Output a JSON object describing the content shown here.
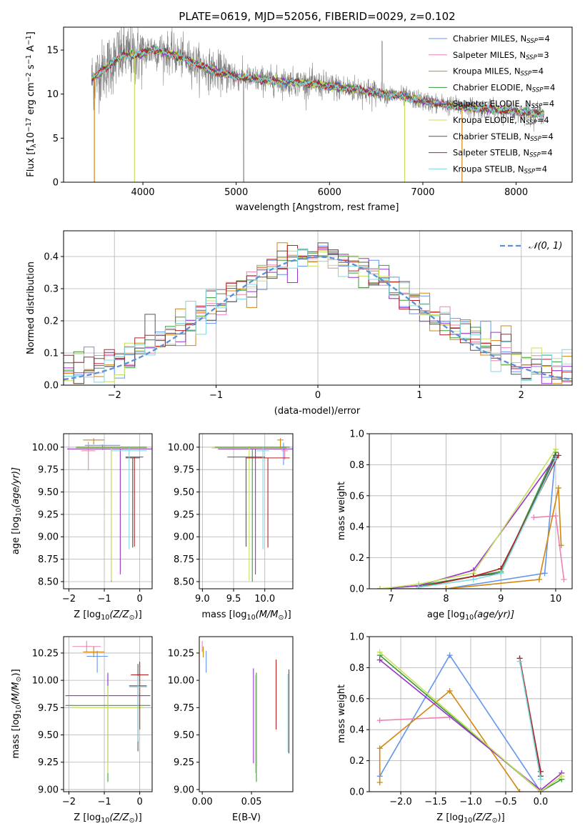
{
  "chart_data": [
    {
      "id": "spectrum",
      "type": "line",
      "title": "PLATE=0619, MJD=52056, FIBERID=0029, z=0.102",
      "xlabel": "wavelength [Angstrom, rest frame]",
      "ylabel_parts": [
        "Flux [f",
        "λ",
        "10",
        "−17",
        " erg cm",
        "−2",
        " s",
        "−1",
        " A",
        "−1",
        "]"
      ],
      "xlim": [
        3150,
        8600
      ],
      "ylim": [
        0,
        17.6
      ],
      "xticks": [
        4000,
        5000,
        6000,
        7000,
        8000
      ],
      "yticks": [
        0,
        5,
        10,
        15
      ],
      "grid": false,
      "legend_position": "upper right",
      "legend": [
        {
          "name": "Chabrier MILES, N",
          "sub": "SSP",
          "tail": "=4",
          "color": "#6495ed"
        },
        {
          "name": "Salpeter MILES, N",
          "sub": "SSP",
          "tail": "=3",
          "color": "#ee82b4"
        },
        {
          "name": "Kroupa MILES, N",
          "sub": "SSP",
          "tail": "=4",
          "color": "#d2860e"
        },
        {
          "name": "Chabrier ELODIE, N",
          "sub": "SSP",
          "tail": "=4",
          "color": "#3a9a3a"
        },
        {
          "name": "Salpeter ELODIE, N",
          "sub": "SSP",
          "tail": "=4",
          "color": "#9932cc"
        },
        {
          "name": "Kroupa ELODIE, N",
          "sub": "SSP",
          "tail": "=4",
          "color": "#c5e05a"
        },
        {
          "name": "Chabrier STELIB, N",
          "sub": "SSP",
          "tail": "=4",
          "color": "#555555"
        },
        {
          "name": "Salpeter STELIB, N",
          "sub": "SSP",
          "tail": "=4",
          "color": "#b22222"
        },
        {
          "name": "Kroupa STELIB, N",
          "sub": "SSP",
          "tail": "=4",
          "color": "#7fd8e0"
        }
      ],
      "data_color": "#808080",
      "continuum": [
        [
          3450,
          11.6
        ],
        [
          3600,
          13.0
        ],
        [
          3800,
          14.5
        ],
        [
          3950,
          14.4
        ],
        [
          4100,
          15.1
        ],
        [
          4300,
          14.6
        ],
        [
          4500,
          13.8
        ],
        [
          4700,
          12.8
        ],
        [
          4900,
          12.3
        ],
        [
          5100,
          11.8
        ],
        [
          5400,
          11.5
        ],
        [
          5700,
          11.3
        ],
        [
          6000,
          10.9
        ],
        [
          6300,
          10.5
        ],
        [
          6600,
          10.0
        ],
        [
          6800,
          9.7
        ],
        [
          7000,
          9.2
        ],
        [
          7300,
          8.7
        ],
        [
          7600,
          8.4
        ],
        [
          7900,
          8.1
        ],
        [
          8200,
          7.8
        ],
        [
          8300,
          7.8
        ]
      ]
    },
    {
      "id": "residuals",
      "type": "step",
      "xlabel": "(data-model)/error",
      "ylabel": "Normed distribution",
      "xlim": [
        -2.5,
        2.5
      ],
      "ylim": [
        0,
        0.48
      ],
      "xticks": [
        -2,
        -1,
        0,
        1,
        2
      ],
      "yticks": [
        0.0,
        0.1,
        0.2,
        0.3,
        0.4
      ],
      "grid": true,
      "legend": "𝒩(0, 1)",
      "legend_position": "upper right",
      "reference_color": "#5b8fd9",
      "bin_width": 0.1
    },
    {
      "id": "age-vs-Z",
      "type": "scatter",
      "xlabel_main": "Z [log",
      "xlabel_sub": "10",
      "xlabel_tail": "(Z/Z",
      "xlabel_end": ")]",
      "ylabel_main": "age  [log",
      "ylabel_sub": "10",
      "ylabel_tail": "(age/yr)]",
      "xlim": [
        -2.15,
        0.35
      ],
      "ylim": [
        8.42,
        10.15
      ],
      "xticks": [
        -2,
        -1,
        0
      ],
      "yticks": [
        8.5,
        8.75,
        9.0,
        9.25,
        9.5,
        9.75,
        10.0
      ],
      "grid": true,
      "points": [
        {
          "x": -1.05,
          "y": 10.02,
          "xerr": 0.5,
          "yerr_lo": 0.05,
          "yerr_hi": 0.01,
          "color": "#6495ed"
        },
        {
          "x": -1.45,
          "y": 9.96,
          "xerr": 0.2,
          "yerr_lo": 0.22,
          "yerr_hi": 0.1,
          "color": "#ee82b4"
        },
        {
          "x": -1.3,
          "y": 10.08,
          "xerr": 0.3,
          "yerr_lo": 0.05,
          "yerr_hi": 0.02,
          "color": "#d2860e"
        },
        {
          "x": -0.8,
          "y": 10.0,
          "xerr": 1.0,
          "yerr_lo": 1.5,
          "yerr_hi": 0.0,
          "color": "#3a9a3a"
        },
        {
          "x": -0.55,
          "y": 9.98,
          "xerr": 1.5,
          "yerr_lo": 1.4,
          "yerr_hi": 0.0,
          "color": "#9932cc"
        },
        {
          "x": -0.8,
          "y": 9.99,
          "xerr": 1.0,
          "yerr_lo": 1.48,
          "yerr_hi": 0.0,
          "color": "#c5e05a"
        },
        {
          "x": -0.2,
          "y": 9.88,
          "xerr": 0.2,
          "yerr_lo": 1.0,
          "yerr_hi": 0.0,
          "color": "#555555"
        },
        {
          "x": -0.15,
          "y": 9.89,
          "xerr": 0.25,
          "yerr_lo": 1.0,
          "yerr_hi": 0.0,
          "color": "#b22222"
        },
        {
          "x": -0.3,
          "y": 9.96,
          "xerr": 0.5,
          "yerr_lo": 1.1,
          "yerr_hi": 0.04,
          "color": "#7fd8e0"
        }
      ]
    },
    {
      "id": "age-vs-mass",
      "type": "scatter",
      "xlabel_main": "mass [log",
      "xlabel_sub": "10",
      "xlabel_tail": "(M/M",
      "xlabel_end": ")]",
      "xlim": [
        8.95,
        10.45
      ],
      "ylim": [
        8.42,
        10.15
      ],
      "xticks": [
        9.0,
        9.5,
        10.0
      ],
      "yticks": [
        8.5,
        8.75,
        9.0,
        9.25,
        9.5,
        9.75,
        10.0
      ],
      "grid": true,
      "points": [
        {
          "x": 10.3,
          "y": 10.0,
          "xerr": 0.05,
          "yerr_lo": 0.2,
          "yerr_hi": 0.05,
          "color": "#6495ed"
        },
        {
          "x": 10.32,
          "y": 9.96,
          "xerr": 0.05,
          "yerr_lo": 0.1,
          "yerr_hi": 0.05,
          "color": "#ee82b4"
        },
        {
          "x": 10.25,
          "y": 10.08,
          "xerr": 0.05,
          "yerr_lo": 0.1,
          "yerr_hi": 0.02,
          "color": "#d2860e"
        },
        {
          "x": 9.8,
          "y": 10.0,
          "xerr": 0.6,
          "yerr_lo": 1.5,
          "yerr_hi": 0.0,
          "color": "#3a9a3a"
        },
        {
          "x": 9.85,
          "y": 9.98,
          "xerr": 0.6,
          "yerr_lo": 1.4,
          "yerr_hi": 0.0,
          "color": "#9932cc"
        },
        {
          "x": 9.75,
          "y": 9.99,
          "xerr": 0.6,
          "yerr_lo": 1.48,
          "yerr_hi": 0.0,
          "color": "#c5e05a"
        },
        {
          "x": 9.7,
          "y": 9.89,
          "xerr": 0.3,
          "yerr_lo": 1.0,
          "yerr_hi": 0.0,
          "color": "#555555"
        },
        {
          "x": 10.05,
          "y": 9.88,
          "xerr": 0.35,
          "yerr_lo": 1.0,
          "yerr_hi": 0.0,
          "color": "#b22222"
        },
        {
          "x": 9.97,
          "y": 9.96,
          "xerr": 0.1,
          "yerr_lo": 1.1,
          "yerr_hi": 0.04,
          "color": "#7fd8e0"
        }
      ]
    },
    {
      "id": "weight-vs-age",
      "type": "line",
      "xlabel_main": "age  [log",
      "xlabel_sub": "10",
      "xlabel_tail": "(age/yr)]",
      "ylabel": "mass weight",
      "xlim": [
        6.6,
        10.3
      ],
      "ylim": [
        0,
        1.0
      ],
      "xticks": [
        7,
        8,
        9,
        10
      ],
      "yticks": [
        0.0,
        0.2,
        0.4,
        0.6,
        0.8,
        1.0
      ],
      "grid": true,
      "series": [
        {
          "color": "#6495ed",
          "points": [
            [
              6.8,
              0.0
            ],
            [
              8.0,
              0.0
            ],
            [
              9.8,
              0.1
            ],
            [
              10.0,
              0.88
            ]
          ]
        },
        {
          "color": "#ee82b4",
          "points": [
            [
              9.6,
              0.46
            ],
            [
              10.0,
              0.47
            ],
            [
              10.15,
              0.06
            ]
          ]
        },
        {
          "color": "#d2860e",
          "points": [
            [
              7.5,
              0.0
            ],
            [
              8.0,
              0.0
            ],
            [
              9.7,
              0.06
            ],
            [
              10.05,
              0.65
            ],
            [
              10.1,
              0.28
            ]
          ]
        },
        {
          "color": "#3a9a3a",
          "points": [
            [
              6.8,
              0.0
            ],
            [
              7.5,
              0.02
            ],
            [
              8.5,
              0.08
            ],
            [
              9.0,
              0.11
            ],
            [
              10.0,
              0.88
            ]
          ]
        },
        {
          "color": "#9932cc",
          "points": [
            [
              6.8,
              0.0
            ],
            [
              7.5,
              0.02
            ],
            [
              8.5,
              0.12
            ],
            [
              10.0,
              0.85
            ]
          ]
        },
        {
          "color": "#c5e05a",
          "points": [
            [
              6.8,
              0.0
            ],
            [
              7.5,
              0.03
            ],
            [
              8.5,
              0.1
            ],
            [
              10.0,
              0.9
            ]
          ]
        },
        {
          "color": "#555555",
          "points": [
            [
              7.5,
              0.01
            ],
            [
              8.5,
              0.08
            ],
            [
              9.0,
              0.1
            ],
            [
              10.0,
              0.86
            ]
          ]
        },
        {
          "color": "#b22222",
          "points": [
            [
              7.5,
              0.01
            ],
            [
              8.5,
              0.08
            ],
            [
              9.0,
              0.13
            ],
            [
              10.05,
              0.86
            ]
          ]
        },
        {
          "color": "#7fd8e0",
          "points": [
            [
              7.5,
              0.01
            ],
            [
              8.5,
              0.06
            ],
            [
              9.0,
              0.1
            ],
            [
              10.0,
              0.84
            ]
          ]
        }
      ]
    },
    {
      "id": "mass-vs-Z",
      "type": "scatter",
      "xlabel_main": "Z [log",
      "xlabel_sub": "10",
      "xlabel_tail": "(Z/Z",
      "xlabel_end": ")]",
      "ylabel_main": "mass [log",
      "ylabel_sub": "10",
      "ylabel_tail": "(M/M",
      "ylabel_end": ")]",
      "xlim": [
        -2.15,
        0.35
      ],
      "ylim": [
        8.98,
        10.4
      ],
      "xticks": [
        -2,
        -1,
        0
      ],
      "yticks": [
        9.0,
        9.25,
        9.5,
        9.75,
        10.0,
        10.25
      ],
      "grid": true,
      "points": [
        {
          "x": -1.2,
          "y": 10.22,
          "xerr": 0.3,
          "yerr_lo": 0.15,
          "yerr_hi": 0.05,
          "color": "#6495ed"
        },
        {
          "x": -1.5,
          "y": 10.31,
          "xerr": 0.4,
          "yerr_lo": 0.05,
          "yerr_hi": 0.05,
          "color": "#ee82b4"
        },
        {
          "x": -1.3,
          "y": 10.26,
          "xerr": 0.3,
          "yerr_lo": 0.05,
          "yerr_hi": 0.05,
          "color": "#d2860e"
        },
        {
          "x": -0.9,
          "y": 9.77,
          "xerr": 1.2,
          "yerr_lo": 0.7,
          "yerr_hi": 0.3,
          "color": "#3a9a3a"
        },
        {
          "x": -0.9,
          "y": 9.86,
          "xerr": 1.2,
          "yerr_lo": 0.6,
          "yerr_hi": 0.2,
          "color": "#9932cc"
        },
        {
          "x": -0.9,
          "y": 9.75,
          "xerr": 1.0,
          "yerr_lo": 0.6,
          "yerr_hi": 0.2,
          "color": "#c5e05a"
        },
        {
          "x": -0.05,
          "y": 9.95,
          "xerr": 0.25,
          "yerr_lo": 0.6,
          "yerr_hi": 0.2,
          "color": "#555555"
        },
        {
          "x": 0.0,
          "y": 10.05,
          "xerr": 0.25,
          "yerr_lo": 0.5,
          "yerr_hi": 0.12,
          "color": "#b22222"
        },
        {
          "x": -0.05,
          "y": 9.94,
          "xerr": 0.25,
          "yerr_lo": 0.5,
          "yerr_hi": 0.1,
          "color": "#7fd8e0"
        }
      ]
    },
    {
      "id": "mass-vs-ebv",
      "type": "scatter",
      "xlabel": "E(B-V)",
      "xlim": [
        -0.003,
        0.092
      ],
      "ylim": [
        8.98,
        10.4
      ],
      "xticks": [
        0.0,
        0.05
      ],
      "xticklabels": [
        "0.00",
        "0.05"
      ],
      "yticks": [
        9.0,
        9.25,
        9.5,
        9.75,
        10.0,
        10.25
      ],
      "grid": false,
      "points": [
        {
          "x": 0.004,
          "y": 10.22,
          "yerr_lo": 0.15,
          "yerr_hi": 0.05,
          "color": "#6495ed"
        },
        {
          "x": 0.0,
          "y": 10.31,
          "yerr_lo": 0.05,
          "yerr_hi": 0.05,
          "color": "#ee82b4"
        },
        {
          "x": 0.001,
          "y": 10.26,
          "yerr_lo": 0.05,
          "yerr_hi": 0.05,
          "color": "#d2860e"
        },
        {
          "x": 0.055,
          "y": 9.77,
          "yerr_lo": 0.7,
          "yerr_hi": 0.3,
          "color": "#3a9a3a"
        },
        {
          "x": 0.052,
          "y": 9.86,
          "yerr_lo": 0.62,
          "yerr_hi": 0.25,
          "color": "#9932cc"
        },
        {
          "x": 0.054,
          "y": 9.75,
          "yerr_lo": 0.6,
          "yerr_hi": 0.3,
          "color": "#c5e05a"
        },
        {
          "x": 0.088,
          "y": 9.95,
          "yerr_lo": 0.62,
          "yerr_hi": 0.15,
          "color": "#555555"
        },
        {
          "x": 0.075,
          "y": 10.05,
          "yerr_lo": 0.5,
          "yerr_hi": 0.14,
          "color": "#b22222"
        },
        {
          "x": 0.087,
          "y": 9.94,
          "yerr_lo": 0.6,
          "yerr_hi": 0.12,
          "color": "#7fd8e0"
        }
      ]
    },
    {
      "id": "weight-vs-Z",
      "type": "line",
      "xlabel_main": "Z [log",
      "xlabel_sub": "10",
      "xlabel_tail": "(Z/Z",
      "xlabel_end": ")]",
      "ylabel": "mass weight",
      "xlim": [
        -2.45,
        0.45
      ],
      "ylim": [
        0,
        1.0
      ],
      "xticks": [
        -2.0,
        -1.5,
        -1.0,
        -0.5,
        0.0
      ],
      "xticklabels": [
        "−2.0",
        "−1.5",
        "−1.0",
        "−0.5",
        "0.0"
      ],
      "yticks": [
        0.0,
        0.2,
        0.4,
        0.6,
        0.8,
        1.0
      ],
      "grid": true,
      "series": [
        {
          "color": "#6495ed",
          "points": [
            [
              -2.3,
              0.1
            ],
            [
              -1.3,
              0.88
            ],
            [
              0.0,
              0.0
            ]
          ]
        },
        {
          "color": "#ee82b4",
          "points": [
            [
              -2.3,
              0.46
            ],
            [
              -1.3,
              0.48
            ]
          ]
        },
        {
          "color": "#d2860e",
          "points": [
            [
              -2.3,
              0.06
            ],
            [
              -2.3,
              0.28
            ],
            [
              -1.3,
              0.65
            ],
            [
              -0.3,
              0.0
            ]
          ]
        },
        {
          "color": "#3a9a3a",
          "points": [
            [
              -2.3,
              0.88
            ],
            [
              0.0,
              0.0
            ],
            [
              0.3,
              0.08
            ]
          ]
        },
        {
          "color": "#9932cc",
          "points": [
            [
              -2.3,
              0.85
            ],
            [
              0.0,
              0.01
            ],
            [
              0.3,
              0.12
            ]
          ]
        },
        {
          "color": "#c5e05a",
          "points": [
            [
              -2.3,
              0.9
            ],
            [
              0.0,
              0.0
            ],
            [
              0.3,
              0.1
            ]
          ]
        },
        {
          "color": "#555555",
          "points": [
            [
              -0.3,
              0.86
            ],
            [
              0.0,
              0.1
            ]
          ]
        },
        {
          "color": "#b22222",
          "points": [
            [
              -0.3,
              0.86
            ],
            [
              0.0,
              0.13
            ]
          ]
        },
        {
          "color": "#7fd8e0",
          "points": [
            [
              -0.3,
              0.84
            ],
            [
              0.0,
              0.08
            ]
          ]
        }
      ]
    }
  ]
}
